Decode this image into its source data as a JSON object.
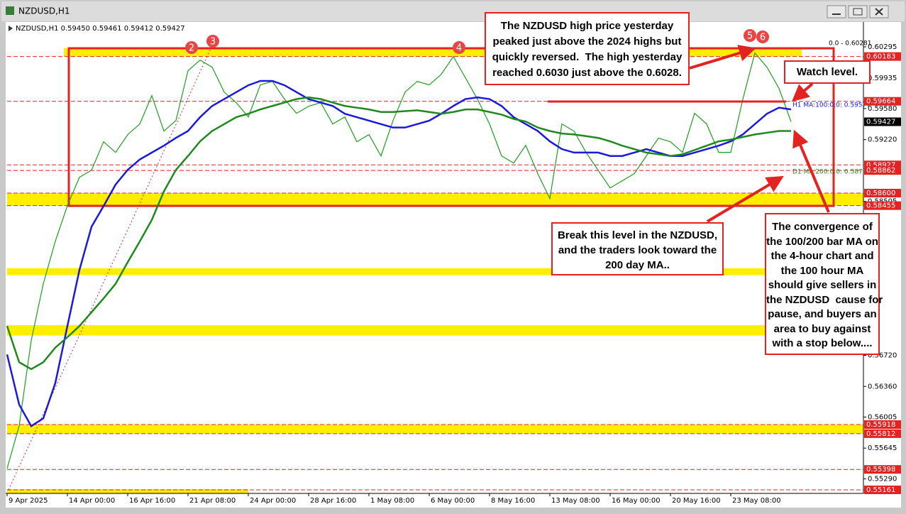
{
  "chart_data": {
    "type": "line",
    "window_title": "NZDUSD,H1",
    "info": "NZDUSD,H1  0.59450 0.59461 0.59412 0.59427",
    "fib_label": "0.0 - 0.60281",
    "categories": [
      "9 Apr 2025",
      null,
      null,
      null,
      null,
      "14 Apr 00:00",
      null,
      null,
      null,
      null,
      "16 Apr 16:00",
      null,
      null,
      null,
      null,
      "21 Apr 08:00",
      null,
      null,
      null,
      null,
      "24 Apr 00:00",
      null,
      null,
      null,
      null,
      "28 Apr 16:00",
      null,
      null,
      null,
      null,
      "1 May 08:00",
      null,
      null,
      null,
      null,
      "6 May 00:00",
      null,
      null,
      null,
      null,
      "8 May 16:00",
      null,
      null,
      null,
      null,
      "13 May 08:00",
      null,
      null,
      null,
      null,
      "16 May 00:00",
      null,
      null,
      null,
      null,
      "20 May 16:00",
      null,
      null,
      null,
      null,
      "23 May 08:00",
      null,
      null,
      null,
      null,
      null,
      null,
      null,
      null,
      null,
      null
    ],
    "series": [
      {
        "color": "#1f9d1f",
        "values": [
          0.55409,
          0.55903,
          0.56891,
          0.57549,
          0.58043,
          0.58455,
          0.58784,
          0.58866,
          0.59195,
          0.59072,
          0.59278,
          0.59401,
          0.5973,
          0.59319,
          0.59442,
          0.60018,
          0.60142,
          0.6006,
          0.59771,
          0.59648,
          0.59483,
          0.59854,
          0.59895,
          0.59689,
          0.59525,
          0.59607,
          0.59648,
          0.59401,
          0.59483,
          0.59195,
          0.59278,
          0.59031,
          0.59442,
          0.59771,
          0.59895,
          0.59854,
          0.59977,
          0.60183,
          0.59936,
          0.59689,
          0.59401,
          0.59031,
          0.58948,
          0.59154,
          0.58825,
          0.58537,
          0.59401,
          0.59319,
          0.59072,
          0.58866,
          0.5866,
          0.58743,
          0.58825,
          0.59031,
          0.59237,
          0.59195,
          0.59072,
          0.59525,
          0.59401,
          0.59072,
          0.59072,
          0.59689,
          0.60224,
          0.6006,
          0.59813,
          0.59427,
          null,
          null,
          null,
          null,
          null
        ]
      },
      {
        "color": "#1a1adb",
        "values": [
          0.5673,
          0.5615,
          0.559,
          0.5599,
          0.564,
          0.5706,
          0.5771,
          0.5821,
          0.5845,
          0.587,
          0.5887,
          0.5899,
          0.5907,
          0.5915,
          0.5924,
          0.5932,
          0.5948,
          0.5961,
          0.5969,
          0.5977,
          0.5985,
          0.599,
          0.599,
          0.5985,
          0.5977,
          0.5969,
          0.5965,
          0.5961,
          0.5952,
          0.5948,
          0.5944,
          0.594,
          0.5936,
          0.5936,
          0.594,
          0.5944,
          0.5952,
          0.5961,
          0.5969,
          0.5971,
          0.5969,
          0.5961,
          0.5948,
          0.594,
          0.5932,
          0.592,
          0.5911,
          0.5907,
          0.5907,
          0.5907,
          0.5903,
          0.5903,
          0.5907,
          0.5911,
          0.5907,
          0.5903,
          0.5903,
          0.5907,
          0.5911,
          0.5915,
          0.592,
          0.5928,
          0.594,
          0.5952,
          0.5959,
          0.5957,
          null,
          null,
          null,
          null,
          null
        ]
      },
      {
        "color": "#1e8a1e",
        "values": [
          0.5706,
          0.5664,
          0.5656,
          0.5664,
          0.5681,
          0.5693,
          0.5706,
          0.5722,
          0.5738,
          0.5755,
          0.578,
          0.5804,
          0.5829,
          0.5862,
          0.5887,
          0.5903,
          0.592,
          0.5932,
          0.594,
          0.5948,
          0.5952,
          0.5957,
          0.5961,
          0.5965,
          0.5969,
          0.5971,
          0.5969,
          0.5965,
          0.5961,
          0.5959,
          0.5957,
          0.5954,
          0.5954,
          0.5955,
          0.5956,
          0.5954,
          0.5952,
          0.5954,
          0.5957,
          0.5957,
          0.5954,
          0.5951,
          0.5946,
          0.5943,
          0.5936,
          0.5932,
          0.5929,
          0.5928,
          0.5926,
          0.5924,
          0.592,
          0.5915,
          0.5911,
          0.5907,
          0.5905,
          0.5903,
          0.5905,
          0.591,
          0.5915,
          0.592,
          0.5922,
          0.5925,
          0.5928,
          0.593,
          0.5932,
          0.5932,
          null,
          null,
          null,
          null,
          null
        ]
      }
    ],
    "ylim": [
      0.5512,
      0.6055
    ],
    "yticks": [
      0.60295,
      0.59935,
      {
        "value": 0.5958,
        "label": "0.59580"
      },
      {
        "value": 0.5922,
        "label": "0.59220"
      },
      0.58505,
      {
        "value": 0.5672,
        "label": "0.56720"
      },
      {
        "value": 0.5636,
        "label": "0.56360"
      },
      0.56005,
      0.55645,
      {
        "value": 0.5529,
        "label": "0.55290"
      }
    ],
    "levels": [
      0.60183,
      0.59664,
      0.58927,
      0.58862,
      {
        "value": 0.586,
        "label": "0.58600"
      },
      0.58455,
      0.55918,
      0.55812,
      0.55398,
      0.55161
    ],
    "current_price": 0.59427,
    "zones": [
      [
        0.60183,
        0.60281
      ],
      [
        0.58455,
        0.586
      ],
      [
        0.5765,
        0.5773
      ],
      [
        0.5695,
        0.5707
      ],
      [
        0.55812,
        0.55918
      ],
      [
        0.5512,
        0.5517
      ]
    ],
    "ma_labels": [
      "H1 MA:100:0:0: 0.59577",
      "D1 MA:200:0:0: 0.58792"
    ],
    "markers": [
      "2",
      "3",
      "4",
      "5",
      "6"
    ],
    "annotations": [
      {
        "lines": [
          "The NZDUSD high price yesterday",
          "peaked just above the 2024 highs but",
          "quickly reversed.  The high yesterday",
          "reached 0.6030 just above the 0.6028."
        ]
      },
      {
        "lines": [
          "Watch level."
        ]
      },
      {
        "lines": [
          "Break this level in the NZDUSD,",
          "and the traders look toward the",
          "200 day MA.."
        ]
      },
      {
        "lines": [
          "The convergence of",
          "the 100/200 bar MA on",
          "the 4-hour chart and",
          "the 100 hour MA",
          "should give sellers in",
          "the NZDUSD  cause for",
          "pause, and buyers an",
          "area to buy against",
          "with a stop below...."
        ]
      }
    ]
  }
}
